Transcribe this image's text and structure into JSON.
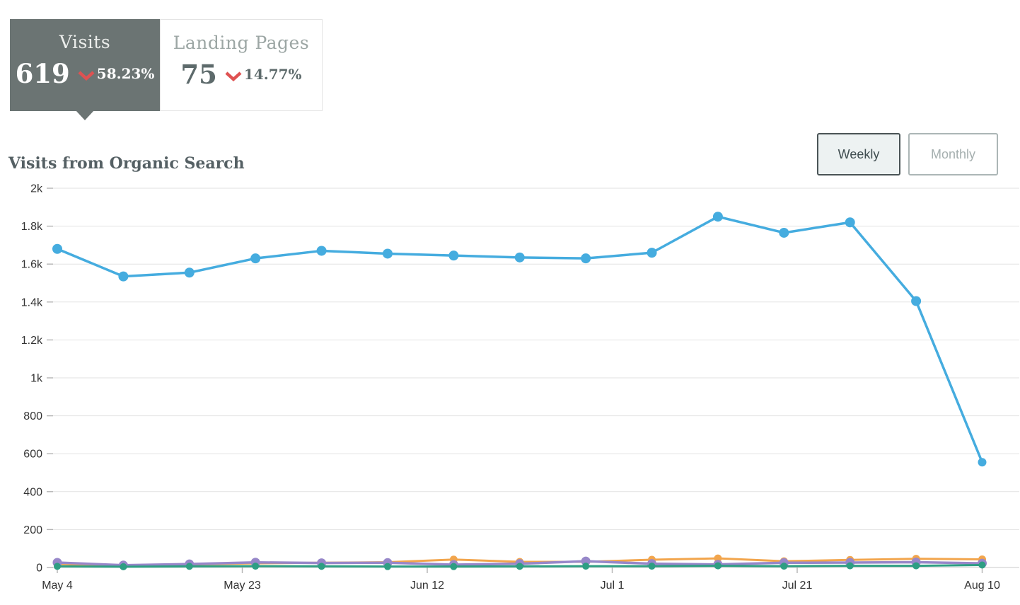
{
  "summary_tabs": [
    {
      "label": "Visits",
      "value": "619",
      "change": "58.23%",
      "direction": "down",
      "active": true
    },
    {
      "label": "Landing Pages",
      "value": "75",
      "change": "14.77%",
      "direction": "down",
      "active": false
    }
  ],
  "toolbar": {
    "weekly_label": "Weekly",
    "monthly_label": "Monthly",
    "active": "Weekly"
  },
  "chart_data": {
    "type": "line",
    "title": "Visits from Organic Search",
    "xlabel": "",
    "ylabel": "",
    "ylim": [
      0,
      2000
    ],
    "grid": true,
    "legend": "none",
    "y_tick_labels": [
      "2k",
      "1.8k",
      "1.6k",
      "1.4k",
      "1.2k",
      "1k",
      "800",
      "600",
      "400",
      "200",
      "0"
    ],
    "x_tick_labels": [
      "May 4",
      "May 23",
      "Jun 12",
      "Jul 1",
      "Jul 21",
      "Aug 10"
    ],
    "points_per_series": 15,
    "series": [
      {
        "name": "organic-search-visits",
        "color": "#45acdf",
        "values": [
          1680,
          1535,
          1555,
          1630,
          1670,
          1655,
          1645,
          1635,
          1630,
          1660,
          1850,
          1765,
          1820,
          1405,
          555
        ]
      },
      {
        "name": "secondary-orange",
        "color": "#f2a54c",
        "values": [
          18,
          12,
          16,
          22,
          25,
          28,
          42,
          30,
          30,
          41,
          48,
          33,
          40,
          46,
          43
        ]
      },
      {
        "name": "secondary-purple",
        "color": "#9787c9",
        "values": [
          26,
          12,
          18,
          27,
          24,
          25,
          15,
          20,
          33,
          20,
          16,
          25,
          26,
          28,
          22
        ]
      },
      {
        "name": "secondary-green",
        "color": "#2e9e83",
        "values": [
          6,
          4,
          6,
          7,
          6,
          5,
          5,
          6,
          7,
          7,
          9,
          7,
          9,
          9,
          13
        ]
      }
    ]
  },
  "colors": {
    "negative_red": "#df5252",
    "active_tab_bg": "#6b7473",
    "title_text": "#556064",
    "gridline": "#e2e2e2",
    "axis_line": "#c8c8c8",
    "tick": "#b4b4b4",
    "axis_text": "#333333"
  }
}
